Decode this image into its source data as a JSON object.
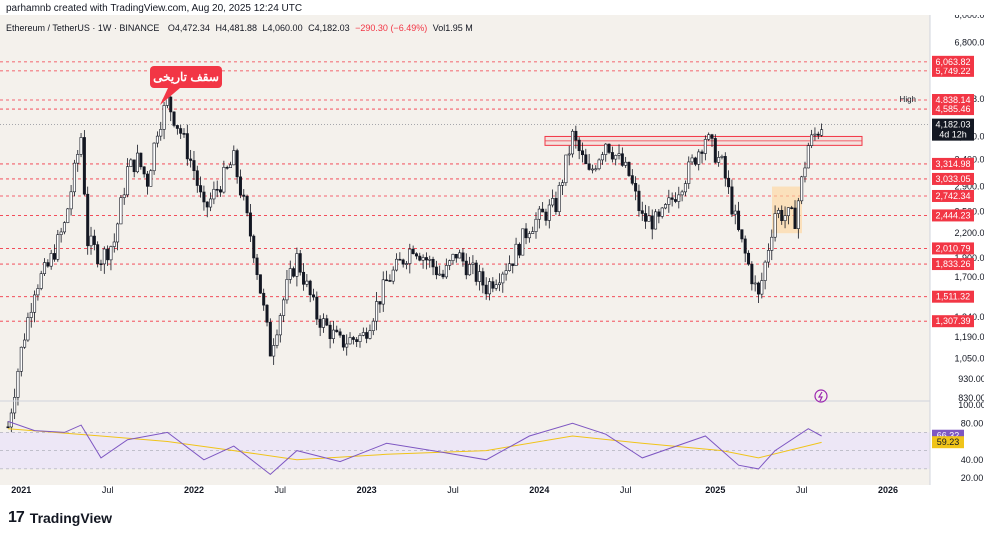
{
  "header": {
    "credit": "parhamnb created with TradingView.com, Aug 20, 2025 12:24 UTC"
  },
  "legend": {
    "symbol": "Ethereum / TetherUS · 1W · BINANCE",
    "open": "O4,472.34",
    "high": "H4,481.88",
    "low": "L4,060.00",
    "close": "C4,182.03",
    "change": "−290.30 (−6.49%)",
    "volume": "Vol1.95 M"
  },
  "annotation": {
    "label": "سقف تاریخی"
  },
  "brand": {
    "logo": "17",
    "name": "TradingView"
  },
  "colors": {
    "background": "#f4f1ec",
    "level_line": "#f23645",
    "candle": "#131722",
    "rsi_line": "#7e57c2",
    "rsi_ma": "#f0c419",
    "rsi_band": "#ede7f6",
    "highlight_box": "#ffd59b"
  },
  "chart_data": {
    "type": "candlestick",
    "x_ticks": [
      "2021",
      "Jul",
      "2022",
      "Jul",
      "2023",
      "Jul",
      "2024",
      "Jul",
      "2025",
      "Jul",
      "2026"
    ],
    "y_ticks": [
      "8,000.00",
      "6,800.00",
      "4,868.00",
      "3,900.00",
      "3,400.00",
      "2,900.00",
      "2,500.00",
      "2,200.00",
      "1,900.00",
      "1,700.00",
      "1,340.00",
      "1,190.00",
      "1,050.00",
      "930.00",
      "830.00"
    ],
    "y_scale": "log",
    "high_marker": {
      "label": "High",
      "value": "4,868.00"
    },
    "current_price": {
      "value": "4,182.03",
      "countdown": "4d 12h"
    },
    "levels": [
      "5,749.22",
      "6,063.82",
      "4,838.14",
      "4,585.46",
      "3,314.98",
      "3,033.05",
      "2,742.34",
      "2,444.23",
      "2,010.79",
      "1,833.26",
      "1,511.32",
      "1,307.39"
    ],
    "resistance_zone": [
      "3,700",
      "3,900"
    ],
    "weekly_closes": [
      {
        "date": "2020-12-07",
        "close": 700
      },
      {
        "date": "2021-01-04",
        "close": 1100
      },
      {
        "date": "2021-02-01",
        "close": 1600
      },
      {
        "date": "2021-03-01",
        "close": 1800
      },
      {
        "date": "2021-04-05",
        "close": 2300
      },
      {
        "date": "2021-05-10",
        "close": 3900
      },
      {
        "date": "2021-05-24",
        "close": 2100
      },
      {
        "date": "2021-06-21",
        "close": 1900
      },
      {
        "date": "2021-07-19",
        "close": 2100
      },
      {
        "date": "2021-08-16",
        "close": 3200
      },
      {
        "date": "2021-09-06",
        "close": 3400
      },
      {
        "date": "2021-09-27",
        "close": 3000
      },
      {
        "date": "2021-10-18",
        "close": 4100
      },
      {
        "date": "2021-11-08",
        "close": 4800
      },
      {
        "date": "2021-12-06",
        "close": 4000
      },
      {
        "date": "2022-01-03",
        "close": 3200
      },
      {
        "date": "2022-01-24",
        "close": 2500
      },
      {
        "date": "2022-03-28",
        "close": 3400
      },
      {
        "date": "2022-05-09",
        "close": 2000
      },
      {
        "date": "2022-06-13",
        "close": 1100
      },
      {
        "date": "2022-07-18",
        "close": 1600
      },
      {
        "date": "2022-08-08",
        "close": 1900
      },
      {
        "date": "2022-09-19",
        "close": 1350
      },
      {
        "date": "2022-11-07",
        "close": 1150
      },
      {
        "date": "2022-12-26",
        "close": 1200
      },
      {
        "date": "2023-02-13",
        "close": 1650
      },
      {
        "date": "2023-04-10",
        "close": 2050
      },
      {
        "date": "2023-06-12",
        "close": 1700
      },
      {
        "date": "2023-07-10",
        "close": 1950
      },
      {
        "date": "2023-09-11",
        "close": 1600
      },
      {
        "date": "2023-11-06",
        "close": 1900
      },
      {
        "date": "2023-12-11",
        "close": 2300
      },
      {
        "date": "2024-02-05",
        "close": 2600
      },
      {
        "date": "2024-03-11",
        "close": 3900
      },
      {
        "date": "2024-04-15",
        "close": 3100
      },
      {
        "date": "2024-05-20",
        "close": 3800
      },
      {
        "date": "2024-07-08",
        "close": 3100
      },
      {
        "date": "2024-08-05",
        "close": 2400
      },
      {
        "date": "2024-09-09",
        "close": 2350
      },
      {
        "date": "2024-11-11",
        "close": 3200
      },
      {
        "date": "2024-12-16",
        "close": 3900
      },
      {
        "date": "2025-01-20",
        "close": 3300
      },
      {
        "date": "2025-02-24",
        "close": 2200
      },
      {
        "date": "2025-04-07",
        "close": 1500
      },
      {
        "date": "2025-05-12",
        "close": 2500
      },
      {
        "date": "2025-06-23",
        "close": 2400
      },
      {
        "date": "2025-07-21",
        "close": 3700
      },
      {
        "date": "2025-08-18",
        "close": 4182
      }
    ],
    "rsi": {
      "y_ticks": [
        "100.00",
        "80.00",
        "40.00",
        "20.00"
      ],
      "rsi_value": "66.32",
      "ma_value": "59.23",
      "rsi_series": [
        {
          "date": "2020-12-07",
          "value": 82
        },
        {
          "date": "2021-02-01",
          "value": 72
        },
        {
          "date": "2021-04-05",
          "value": 70
        },
        {
          "date": "2021-05-10",
          "value": 78
        },
        {
          "date": "2021-06-21",
          "value": 42
        },
        {
          "date": "2021-08-16",
          "value": 62
        },
        {
          "date": "2021-11-08",
          "value": 70
        },
        {
          "date": "2022-01-24",
          "value": 40
        },
        {
          "date": "2022-03-28",
          "value": 55
        },
        {
          "date": "2022-06-13",
          "value": 24
        },
        {
          "date": "2022-08-08",
          "value": 50
        },
        {
          "date": "2022-11-07",
          "value": 38
        },
        {
          "date": "2023-02-13",
          "value": 58
        },
        {
          "date": "2023-06-12",
          "value": 48
        },
        {
          "date": "2023-09-11",
          "value": 40
        },
        {
          "date": "2023-12-11",
          "value": 66
        },
        {
          "date": "2024-03-11",
          "value": 80
        },
        {
          "date": "2024-05-20",
          "value": 68
        },
        {
          "date": "2024-08-05",
          "value": 42
        },
        {
          "date": "2024-12-16",
          "value": 66
        },
        {
          "date": "2025-02-24",
          "value": 34
        },
        {
          "date": "2025-04-07",
          "value": 30
        },
        {
          "date": "2025-05-12",
          "value": 50
        },
        {
          "date": "2025-07-21",
          "value": 74
        },
        {
          "date": "2025-08-18",
          "value": 66
        }
      ],
      "ma_series": [
        {
          "date": "2020-12-07",
          "value": 74
        },
        {
          "date": "2021-06-21",
          "value": 66
        },
        {
          "date": "2021-11-08",
          "value": 60
        },
        {
          "date": "2022-03-28",
          "value": 50
        },
        {
          "date": "2022-08-08",
          "value": 40
        },
        {
          "date": "2023-02-13",
          "value": 46
        },
        {
          "date": "2023-09-11",
          "value": 50
        },
        {
          "date": "2024-03-11",
          "value": 66
        },
        {
          "date": "2024-08-05",
          "value": 58
        },
        {
          "date": "2025-01-20",
          "value": 50
        },
        {
          "date": "2025-04-07",
          "value": 42
        },
        {
          "date": "2025-08-18",
          "value": 59
        }
      ]
    }
  }
}
